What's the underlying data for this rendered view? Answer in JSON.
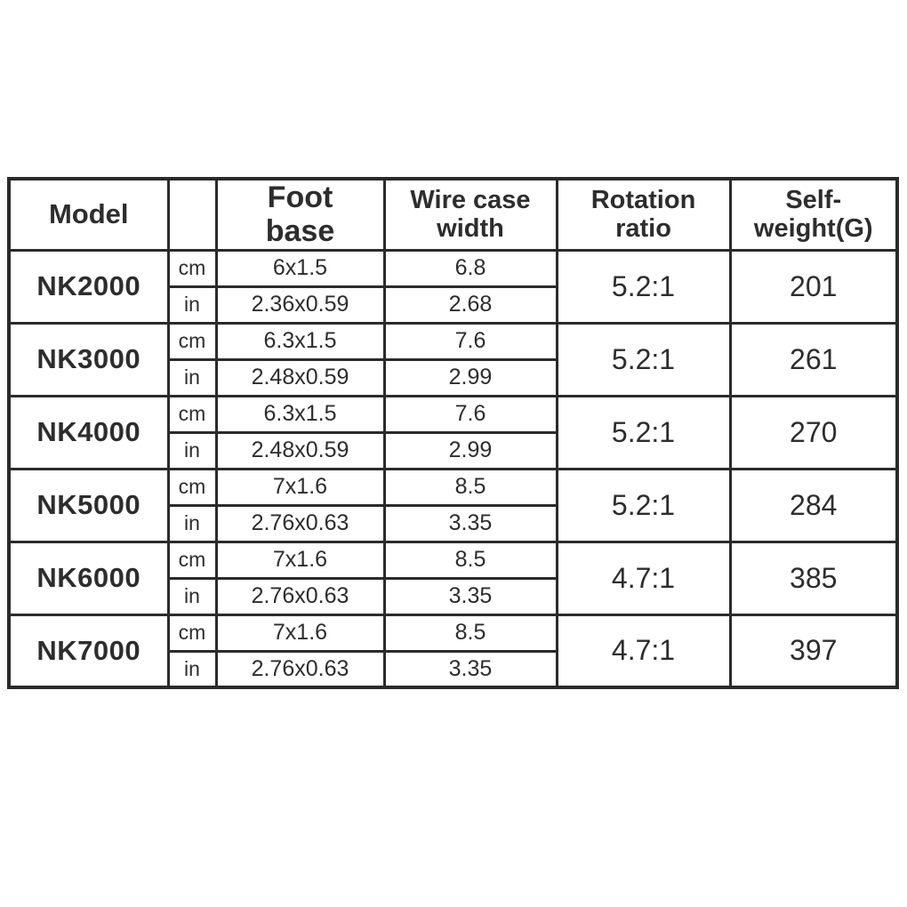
{
  "chart_data": {
    "type": "table",
    "title": "",
    "headers": {
      "model": "Model",
      "unit": "",
      "foot_base": "Foot\nbase",
      "wire_case_width": "Wire case\nwidth",
      "rotation_ratio": "Rotation\nratio",
      "self_weight": "Self-\nweight(G)"
    },
    "rows": [
      {
        "model": "NK2000",
        "cm": {
          "label": "cm",
          "foot_base": "6x1.5",
          "wire_case_width": "6.8"
        },
        "in": {
          "label": "in",
          "foot_base": "2.36x0.59",
          "wire_case_width": "2.68"
        },
        "rotation_ratio": "5.2:1",
        "self_weight": "201"
      },
      {
        "model": "NK3000",
        "cm": {
          "label": "cm",
          "foot_base": "6.3x1.5",
          "wire_case_width": "7.6"
        },
        "in": {
          "label": "in",
          "foot_base": "2.48x0.59",
          "wire_case_width": "2.99"
        },
        "rotation_ratio": "5.2:1",
        "self_weight": "261"
      },
      {
        "model": "NK4000",
        "cm": {
          "label": "cm",
          "foot_base": "6.3x1.5",
          "wire_case_width": "7.6"
        },
        "in": {
          "label": "in",
          "foot_base": "2.48x0.59",
          "wire_case_width": "2.99"
        },
        "rotation_ratio": "5.2:1",
        "self_weight": "270"
      },
      {
        "model": "NK5000",
        "cm": {
          "label": "cm",
          "foot_base": "7x1.6",
          "wire_case_width": "8.5"
        },
        "in": {
          "label": "in",
          "foot_base": "2.76x0.63",
          "wire_case_width": "3.35"
        },
        "rotation_ratio": "5.2:1",
        "self_weight": "284"
      },
      {
        "model": "NK6000",
        "cm": {
          "label": "cm",
          "foot_base": "7x1.6",
          "wire_case_width": "8.5"
        },
        "in": {
          "label": "in",
          "foot_base": "2.76x0.63",
          "wire_case_width": "3.35"
        },
        "rotation_ratio": "4.7:1",
        "self_weight": "385"
      },
      {
        "model": "NK7000",
        "cm": {
          "label": "cm",
          "foot_base": "7x1.6",
          "wire_case_width": "8.5"
        },
        "in": {
          "label": "in",
          "foot_base": "2.76x0.63",
          "wire_case_width": "3.35"
        },
        "rotation_ratio": "4.7:1",
        "self_weight": "397"
      }
    ],
    "colors": {
      "highlight_blue": "#35AEE8",
      "border": "#2B2B2B",
      "text": "#2D2D2D"
    },
    "layout": {
      "grid": "on",
      "highlighted_unit_row": "cm"
    }
  }
}
